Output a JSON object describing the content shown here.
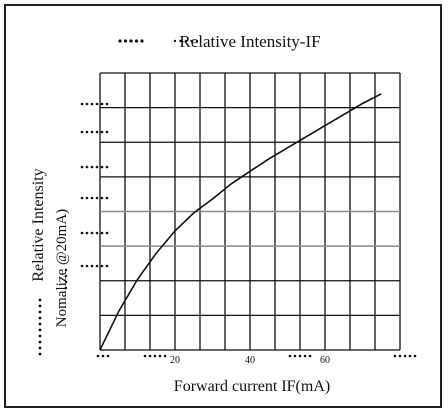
{
  "chart_data": {
    "type": "line",
    "title": "Relative Intensity-IF",
    "xlabel": "Forward current IF(mA)",
    "ylabel": "Relative Intensity",
    "ylabel2": "Nomalize @20mA)",
    "x_ticks": [
      "20",
      "40",
      "60"
    ],
    "xlim": [
      0,
      80
    ],
    "grid": true,
    "series": [
      {
        "x": [
          0,
          5,
          10,
          15,
          20,
          25,
          30,
          35,
          40,
          45,
          50,
          55,
          60,
          65,
          70,
          75
        ],
        "y": [
          0.0,
          0.14,
          0.255,
          0.35,
          0.43,
          0.495,
          0.545,
          0.6,
          0.645,
          0.69,
          0.73,
          0.77,
          0.81,
          0.85,
          0.89,
          0.925
        ]
      }
    ]
  },
  "colors": {
    "line": "#111111",
    "grid": "#111111",
    "grid_light": "#8a8a8a"
  }
}
